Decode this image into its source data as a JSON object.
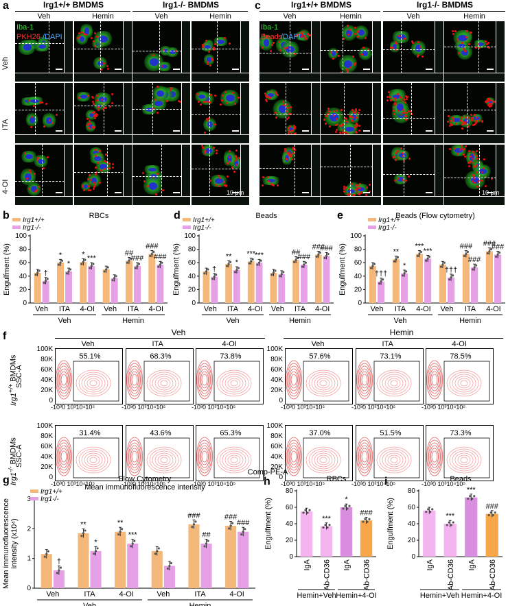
{
  "panels": {
    "a": {
      "label": "a",
      "genotypes": [
        "Irg1+/+ BMDMS",
        "Irg1-/- BMDMS"
      ],
      "columns": [
        "Veh",
        "Hemin",
        "Veh",
        "Hemin"
      ],
      "rows": [
        "Veh",
        "ITA",
        "4-OI"
      ],
      "stain": {
        "iba": "Iba-1",
        "pkh": "PKH26",
        "dapi": "/DAPI"
      },
      "scale": "10 μm"
    },
    "c": {
      "label": "c",
      "genotypes": [
        "Irg1+/+ BMDMS",
        "Irg1-/- BMDMS"
      ],
      "columns": [
        "Veh",
        "Hemin",
        "Veh",
        "Hemin"
      ],
      "stain": {
        "iba": "Iba-1",
        "beads": "Beads",
        "dapi": "/DAPI"
      },
      "scale": "10 μm"
    },
    "f": {
      "label": "f",
      "outer": [
        "Veh",
        "Hemin"
      ],
      "cols": [
        "Veh",
        "ITA",
        "4-OI",
        "Veh",
        "ITA",
        "4-OI"
      ],
      "ylabels": [
        "Irg1+/+ BMDMs",
        "Irg1-/- BMDMs"
      ],
      "yaxis": "SSC-A",
      "xaxis": "Comp-PE-A",
      "percent_wt": [
        "55.1%",
        "68.3%",
        "73.8%",
        "57.6%",
        "73.1%",
        "78.5%"
      ],
      "percent_ko": [
        "31.4%",
        "43.6%",
        "65.3%",
        "37.0%",
        "51.5%",
        "73.3%"
      ],
      "yticks": [
        "100K",
        "80K",
        "60K",
        "40K",
        "20K",
        "0"
      ],
      "xticks": "-10³0 10³10⁴10⁵"
    }
  },
  "colors": {
    "wt": "#f4b87a",
    "ko": "#e6a0e6",
    "orange": "#f7a64a",
    "purple": "#d98ee0",
    "pink_light": "#f4b4ef"
  },
  "chart_data": [
    {
      "id": "b",
      "type": "bar",
      "title": "RBCs",
      "ylabel": "Engulfment (%)",
      "ylim": [
        0,
        100
      ],
      "yticks": [
        0,
        20,
        40,
        60,
        80,
        100
      ],
      "categories": [
        "Veh",
        "ITA",
        "4-OI",
        "Veh",
        "ITA",
        "4-OI"
      ],
      "groups": [
        "Veh",
        "Hemin"
      ],
      "series": [
        {
          "name": "Irg1+/+",
          "values": [
            45,
            60,
            61,
            50,
            63,
            73
          ]
        },
        {
          "name": "Irg1-/-",
          "values": [
            33,
            47,
            55,
            37,
            55,
            57
          ]
        }
      ],
      "sig_wt": [
        "",
        "*",
        "*",
        "",
        "##",
        "###"
      ],
      "sig_ko": [
        "†",
        "*",
        "***",
        "",
        "###",
        "###"
      ]
    },
    {
      "id": "d",
      "type": "bar",
      "title": "Beads",
      "ylabel": "Engulfment (%)",
      "ylim": [
        0,
        100
      ],
      "yticks": [
        0,
        20,
        40,
        60,
        80,
        100
      ],
      "categories": [
        "Veh",
        "ITA",
        "4-OI",
        "Veh",
        "ITA",
        "4-OI"
      ],
      "groups": [
        "Veh",
        "Hemin"
      ],
      "series": [
        {
          "name": "Irg1+/+",
          "values": [
            47,
            58,
            62,
            45,
            64,
            72
          ]
        },
        {
          "name": "Irg1-/-",
          "values": [
            39,
            49,
            60,
            43,
            57,
            70
          ]
        }
      ],
      "sig_wt": [
        "",
        "**",
        "***",
        "",
        "##",
        "###"
      ],
      "sig_ko": [
        "†",
        "*",
        "***",
        "",
        "###",
        "###"
      ]
    },
    {
      "id": "e",
      "type": "bar",
      "title": "Beads (Flow cytometry)",
      "ylabel": "Engulfment (%)",
      "ylim": [
        0,
        100
      ],
      "yticks": [
        0,
        20,
        40,
        60,
        80,
        100
      ],
      "categories": [
        "Veh",
        "ITA",
        "4-OI",
        "Veh",
        "ITA",
        "4-OI"
      ],
      "groups": [
        "Veh",
        "Hemin"
      ],
      "series": [
        {
          "name": "Irg1+/+",
          "values": [
            55,
            65,
            73,
            57,
            73,
            77
          ]
        },
        {
          "name": "Irg1-/-",
          "values": [
            32,
            44,
            66,
            38,
            53,
            72
          ]
        }
      ],
      "sig_wt": [
        "",
        "**",
        "***",
        "",
        "###",
        "###"
      ],
      "sig_ko": [
        "†††",
        "*",
        "***",
        "†††",
        "###",
        "###"
      ]
    },
    {
      "id": "g",
      "type": "bar",
      "title": "Flow Cytometry",
      "subtitle": "Mean immunofluorescence intensity",
      "ylabel": "Mean immunofluorescence intensity (x10⁴)",
      "ylim": [
        0,
        3
      ],
      "yticks": [
        0,
        1,
        2,
        3
      ],
      "categories": [
        "Veh",
        "ITA",
        "4-OI",
        "Veh",
        "ITA",
        "4-OI"
      ],
      "groups": [
        "Veh",
        "Hemin"
      ],
      "series": [
        {
          "name": "Irg1+/+",
          "values": [
            1.15,
            1.85,
            1.9,
            1.25,
            2.15,
            2.1
          ]
        },
        {
          "name": "Irg1-/-",
          "values": [
            0.6,
            1.25,
            1.5,
            0.75,
            1.5,
            1.9
          ]
        }
      ],
      "sig_wt": [
        "",
        "**",
        "**",
        "",
        "###",
        "###"
      ],
      "sig_ko": [
        "†",
        "*",
        "***",
        "",
        "##",
        "###"
      ]
    },
    {
      "id": "h",
      "type": "bar",
      "title": "RBCs",
      "ylabel": "Engulfment (%)",
      "ylim": [
        0,
        80
      ],
      "yticks": [
        0,
        20,
        40,
        60,
        80
      ],
      "categories": [
        "IgA",
        "Ab-CD36",
        "IgA",
        "Ab-CD36"
      ],
      "groups": [
        "Hemin+Veh",
        "Hemin+4-OI"
      ],
      "values": [
        55,
        37,
        60,
        44
      ],
      "sig": [
        "",
        "***",
        "*",
        "###"
      ]
    },
    {
      "id": "i",
      "type": "bar",
      "title": "Beads",
      "ylabel": "Engulfment (%)",
      "ylim": [
        0,
        80
      ],
      "yticks": [
        0,
        20,
        40,
        60,
        80
      ],
      "categories": [
        "IgA",
        "Ab-CD36",
        "IgA",
        "Ab-CD36"
      ],
      "groups": [
        "Hemin+Veh",
        "Hemin+4-OI"
      ],
      "values": [
        56,
        40,
        72,
        52
      ],
      "sig": [
        "",
        "***",
        "***",
        "###"
      ]
    }
  ]
}
